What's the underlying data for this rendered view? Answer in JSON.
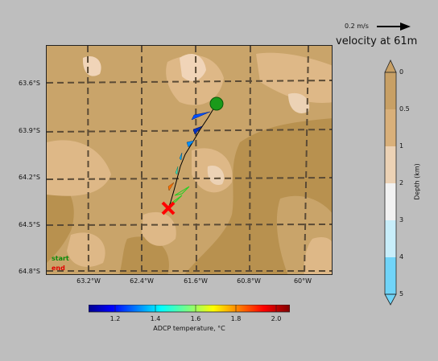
{
  "map": {
    "lat_ticks": [
      "63.6°S",
      "63.9°S",
      "64.2°S",
      "64.5°S",
      "64.8°S"
    ],
    "lon_ticks": [
      "63.2°W",
      "62.4°W",
      "61.6°W",
      "60.8°W",
      "60°W"
    ],
    "legend": {
      "start": "start",
      "end": "end"
    },
    "colors": {
      "land_mid": "#c9a46a",
      "land_dark": "#b8914f",
      "land_light": "#deb887",
      "land_pale": "#f0d4b8",
      "grid": "#5a4a35",
      "start_marker": "#1a9a1a",
      "end_marker": "#ff0000"
    }
  },
  "scale": {
    "label": "0.2 m/s"
  },
  "title": "velocity at 61m",
  "depth_colorbar": {
    "title": "Depth (km)",
    "ticks": [
      "0",
      "0.5",
      "1",
      "2",
      "3",
      "4",
      "5"
    ],
    "colors": [
      "#c8a065",
      "#d9b07a",
      "#ecd2b5",
      "#f2f2f2",
      "#c8eefa",
      "#70d4f8"
    ]
  },
  "temperature_colorbar": {
    "title": "ADCP temperature, °C",
    "ticks": [
      "1.2",
      "1.4",
      "1.6",
      "1.8",
      "2.0"
    ]
  }
}
